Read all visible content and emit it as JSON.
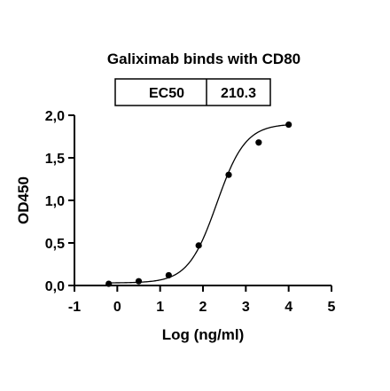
{
  "chart_data": {
    "type": "scatter",
    "title": "Galiximab binds with CD80",
    "xlabel": "Log (ng/ml)",
    "ylabel": "OD450",
    "xlim": [
      -1,
      5
    ],
    "ylim": [
      0,
      2.0
    ],
    "x_ticks": [
      "-1",
      "0",
      "1",
      "2",
      "3",
      "4",
      "5"
    ],
    "y_ticks": [
      "0,0",
      "0,5",
      "1,0",
      "1,5",
      "2,0"
    ],
    "x_tick_values": [
      -1,
      0,
      1,
      2,
      3,
      4,
      5
    ],
    "y_tick_values": [
      0,
      0.5,
      1.0,
      1.5,
      2.0
    ],
    "series": [
      {
        "x": [
          -0.2,
          0.5,
          1.2,
          1.9,
          2.6,
          3.3,
          4.0
        ],
        "y": [
          0.02,
          0.05,
          0.12,
          0.47,
          1.3,
          1.68,
          1.89
        ]
      }
    ],
    "fit": {
      "bottom": 0.03,
      "top": 1.9,
      "logEC50": 2.3229,
      "hill": 1.3
    },
    "stats_table": {
      "label": "EC50",
      "value": "210.3"
    }
  }
}
